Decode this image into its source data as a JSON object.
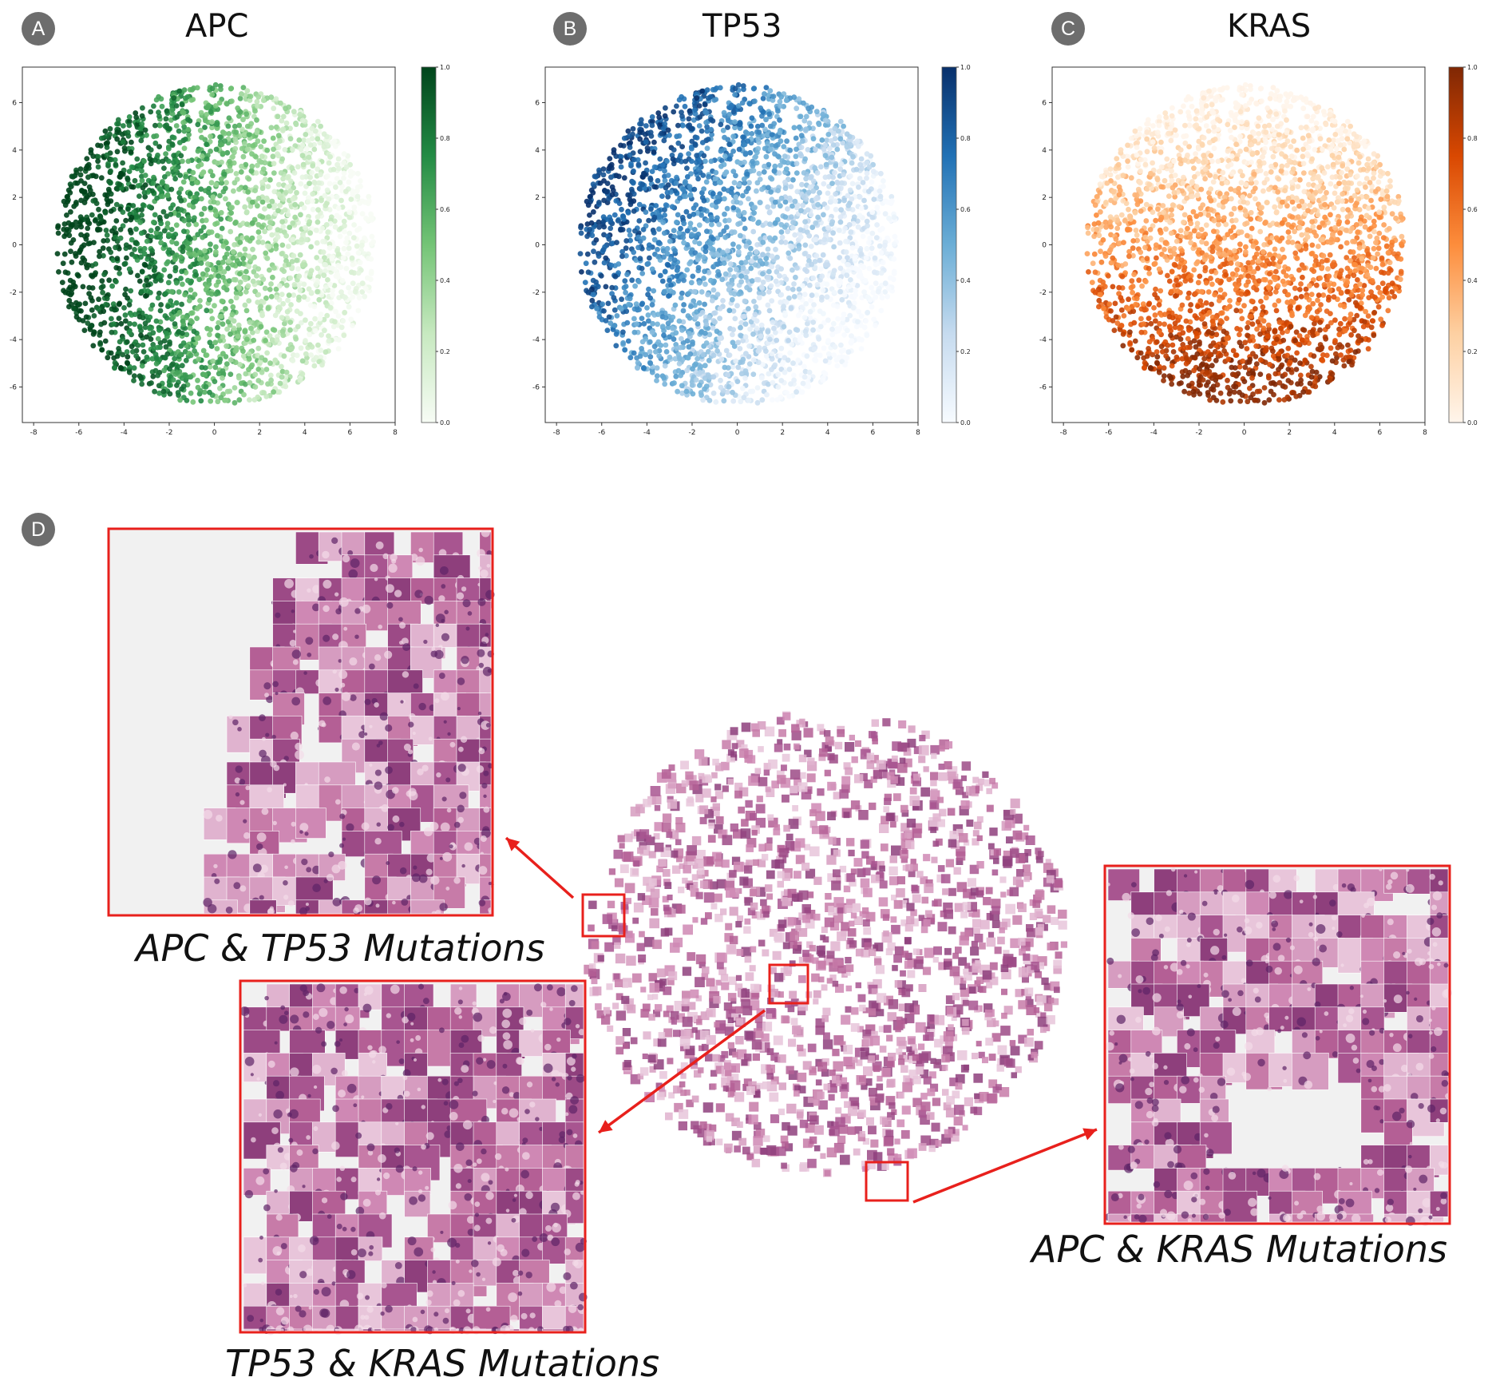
{
  "panels": [
    {
      "badge": "A",
      "title": "APC"
    },
    {
      "badge": "B",
      "title": "TP53"
    },
    {
      "badge": "C",
      "title": "KRAS"
    }
  ],
  "panel_d": {
    "badge": "D"
  },
  "captions": {
    "top_left": "APC & TP53 Mutations",
    "bottom_left": "TP53 & KRAS Mutations",
    "right": "APC & KRAS Mutations"
  },
  "colors": {
    "highlight_box": "#e8201c",
    "tissue_pink": "#c06a9a",
    "tissue_dark": "#6d2a6b"
  },
  "chart_data": [
    {
      "type": "scatter",
      "title": "APC",
      "colormap": "Greens",
      "xlim": [
        -8.5,
        8.0
      ],
      "ylim": [
        -7.5,
        7.5
      ],
      "x_ticks": [
        -8,
        -6,
        -4,
        -2,
        0,
        2,
        4,
        6,
        8
      ],
      "y_ticks": [
        -6,
        -4,
        -2,
        0,
        2,
        4,
        6
      ],
      "colorbar_ticks": [
        0.0,
        0.2,
        0.4,
        0.6,
        0.8,
        1.0
      ],
      "gradient_direction": "high on left, low on right",
      "colors": [
        "#f7fcf5",
        "#c7e9c0",
        "#74c476",
        "#238b45",
        "#00441b"
      ]
    },
    {
      "type": "scatter",
      "title": "TP53",
      "colormap": "Blues",
      "xlim": [
        -8.5,
        8.0
      ],
      "ylim": [
        -7.5,
        7.5
      ],
      "x_ticks": [
        -8,
        -6,
        -4,
        -2,
        0,
        2,
        4,
        6,
        8
      ],
      "y_ticks": [
        -6,
        -4,
        -2,
        0,
        2,
        4,
        6
      ],
      "colorbar_ticks": [
        0.0,
        0.2,
        0.4,
        0.6,
        0.8,
        1.0
      ],
      "gradient_direction": "high on upper-left, low on lower-right",
      "colors": [
        "#f7fbff",
        "#c6dbef",
        "#6baed6",
        "#2171b5",
        "#08306b"
      ]
    },
    {
      "type": "scatter",
      "title": "KRAS",
      "colormap": "Oranges",
      "xlim": [
        -8.5,
        8.0
      ],
      "ylim": [
        -7.5,
        7.5
      ],
      "x_ticks": [
        -8,
        -6,
        -4,
        -2,
        0,
        2,
        4,
        6,
        8
      ],
      "y_ticks": [
        -6,
        -4,
        -2,
        0,
        2,
        4,
        6
      ],
      "colorbar_ticks": [
        0.0,
        0.2,
        0.4,
        0.6,
        0.8,
        1.0
      ],
      "gradient_direction": "high at bottom, low at top",
      "colors": [
        "#fff5eb",
        "#fdd0a2",
        "#fd8d3c",
        "#d94801",
        "#7f2704"
      ]
    }
  ]
}
